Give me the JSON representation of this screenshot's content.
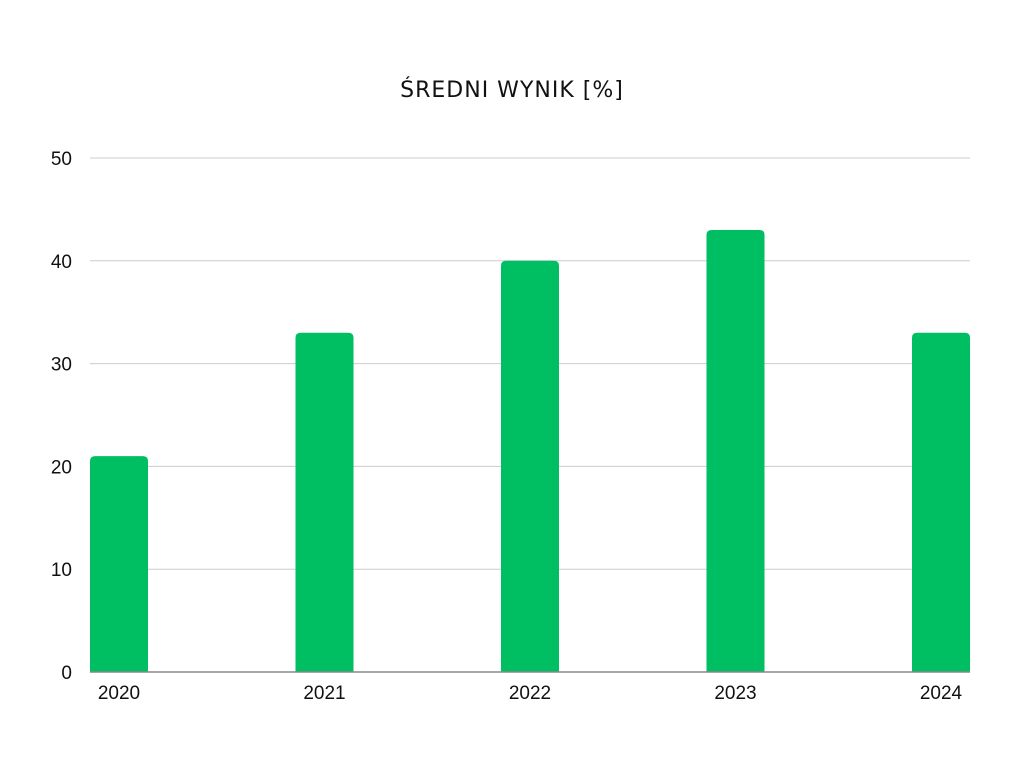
{
  "chart_data": {
    "type": "bar",
    "title": "ŚREDNI WYNIK [%]",
    "categories": [
      "2020",
      "2021",
      "2022",
      "2023",
      "2024"
    ],
    "values": [
      21,
      33,
      40,
      43,
      33
    ],
    "ylim": [
      0,
      50
    ],
    "yticks": [
      "0",
      "10",
      "20",
      "30",
      "40",
      "50"
    ],
    "xlabel": "",
    "ylabel": "",
    "grid": true,
    "legend": "none",
    "bar_color": "#00bf63",
    "grid_color": "#cccccc",
    "axis_color": "#888888"
  }
}
